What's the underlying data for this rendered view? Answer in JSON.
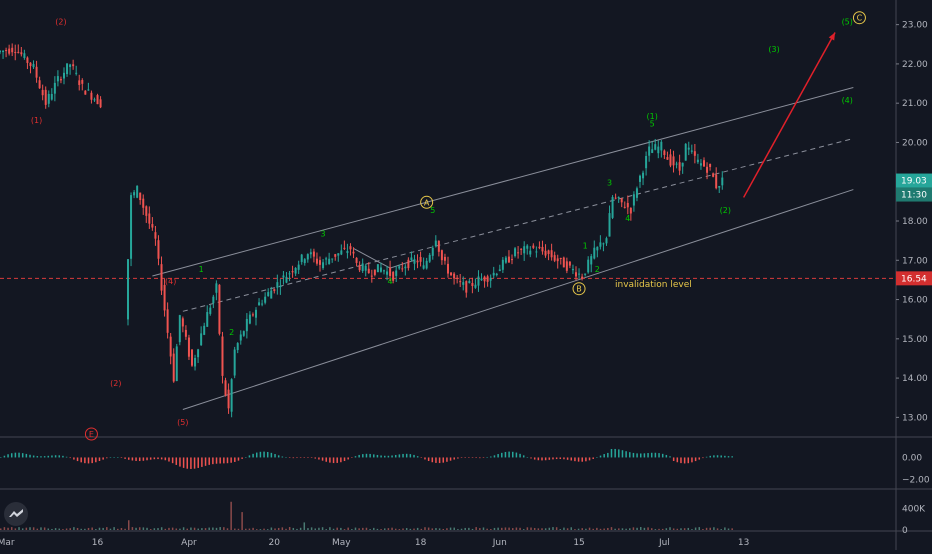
{
  "chart_data": {
    "type": "line",
    "colors": {
      "background": "#131722",
      "up": "#26a69a",
      "down": "#ef5350",
      "channel": "#8a8e9a",
      "wave_green": "#00c800",
      "wave_red": "#e03030",
      "wave_yellow": "#e8c84a",
      "projection": "#e0202a"
    },
    "price_axis": {
      "ylim": [
        12.5,
        23.5
      ],
      "ticks": [
        "23.00",
        "22.00",
        "21.00",
        "20.00",
        "19.00",
        "18.00",
        "17.00",
        "16.00",
        "15.00",
        "14.00",
        "13.00"
      ]
    },
    "current_price_label": "19.03",
    "countdown_label": "11:30",
    "invalidation_price_label": "16.54",
    "invalidation_level": 16.54,
    "invalidation_text": "invalidation level",
    "time_axis": {
      "labels": [
        "Mar",
        "16",
        "Apr",
        "20",
        "May",
        "18",
        "Jun",
        "15",
        "Jul",
        "13"
      ]
    },
    "price_series": [
      {
        "t": 0,
        "v": 22.3
      },
      {
        "t": 3,
        "v": 22.4
      },
      {
        "t": 6,
        "v": 21.9
      },
      {
        "t": 8,
        "v": 21.0
      },
      {
        "t": 10,
        "v": 21.6
      },
      {
        "t": 12,
        "v": 22.0
      },
      {
        "t": 14,
        "v": 21.4
      },
      {
        "t": 17,
        "v": 21.0
      },
      {
        "t": 21,
        "v": 15.5
      },
      {
        "t": 22,
        "v": 18.6
      },
      {
        "t": 23,
        "v": 18.8
      },
      {
        "t": 26,
        "v": 17.5
      },
      {
        "t": 29,
        "v": 14.0
      },
      {
        "t": 30,
        "v": 15.6
      },
      {
        "t": 32,
        "v": 14.3
      },
      {
        "t": 34,
        "v": 15.4
      },
      {
        "t": 36,
        "v": 16.3
      },
      {
        "t": 37,
        "v": 14.0
      },
      {
        "t": 38,
        "v": 13.2
      },
      {
        "t": 39,
        "v": 14.7
      },
      {
        "t": 41,
        "v": 15.4
      },
      {
        "t": 43,
        "v": 15.9
      },
      {
        "t": 46,
        "v": 16.4
      },
      {
        "t": 48,
        "v": 16.7
      },
      {
        "t": 51,
        "v": 17.2
      },
      {
        "t": 53,
        "v": 16.9
      },
      {
        "t": 55,
        "v": 17.1
      },
      {
        "t": 58,
        "v": 17.3
      },
      {
        "t": 59,
        "v": 16.9
      },
      {
        "t": 61,
        "v": 16.7
      },
      {
        "t": 63,
        "v": 16.8
      },
      {
        "t": 65,
        "v": 16.6
      },
      {
        "t": 67,
        "v": 16.9
      },
      {
        "t": 69,
        "v": 17.0
      },
      {
        "t": 70,
        "v": 16.8
      },
      {
        "t": 72,
        "v": 17.6
      },
      {
        "t": 73,
        "v": 17.0
      },
      {
        "t": 75,
        "v": 16.5
      },
      {
        "t": 77,
        "v": 16.3
      },
      {
        "t": 79,
        "v": 16.5
      },
      {
        "t": 81,
        "v": 16.6
      },
      {
        "t": 83,
        "v": 16.9
      },
      {
        "t": 85,
        "v": 17.2
      },
      {
        "t": 88,
        "v": 17.3
      },
      {
        "t": 90,
        "v": 17.2
      },
      {
        "t": 92,
        "v": 17.0
      },
      {
        "t": 94,
        "v": 16.8
      },
      {
        "t": 96,
        "v": 16.6
      },
      {
        "t": 98,
        "v": 17.2
      },
      {
        "t": 100,
        "v": 17.6
      },
      {
        "t": 101,
        "v": 18.6
      },
      {
        "t": 102,
        "v": 18.5
      },
      {
        "t": 104,
        "v": 18.3
      },
      {
        "t": 105,
        "v": 18.9
      },
      {
        "t": 107,
        "v": 19.8
      },
      {
        "t": 109,
        "v": 19.9
      },
      {
        "t": 110,
        "v": 19.6
      },
      {
        "t": 112,
        "v": 19.3
      },
      {
        "t": 113,
        "v": 19.9
      },
      {
        "t": 115,
        "v": 19.5
      },
      {
        "t": 117,
        "v": 19.3
      },
      {
        "t": 118,
        "v": 18.9
      },
      {
        "t": 119,
        "v": 19.03
      }
    ],
    "gap_after_t": 17,
    "channel": {
      "upper": [
        {
          "t": 25,
          "v": 16.6
        },
        {
          "t": 140,
          "v": 21.4
        }
      ],
      "middle": [
        {
          "t": 30,
          "v": 15.7
        },
        {
          "t": 140,
          "v": 20.1
        }
      ],
      "lower": [
        {
          "t": 30,
          "v": 13.2
        },
        {
          "t": 140,
          "v": 18.8
        }
      ]
    },
    "projection_arrow": [
      {
        "t": 122,
        "v": 18.6
      },
      {
        "t": 137,
        "v": 22.8
      }
    ],
    "wave_labels": [
      {
        "text": "(2)",
        "t": 10,
        "v": 23.0,
        "color": "red"
      },
      {
        "text": "(1)",
        "t": 6,
        "v": 20.5,
        "color": "red"
      },
      {
        "text": "(2)",
        "t": 19,
        "v": 13.8,
        "color": "red"
      },
      {
        "text": "(4)",
        "t": 28,
        "v": 16.4,
        "color": "red"
      },
      {
        "text": "(5)",
        "t": 30,
        "v": 12.8,
        "color": "red"
      },
      {
        "text": "E",
        "t": 15,
        "v": 12.5,
        "color": "red",
        "circled": true
      },
      {
        "text": "1",
        "t": 33,
        "v": 16.7,
        "color": "green"
      },
      {
        "text": "2",
        "t": 38,
        "v": 15.1,
        "color": "green"
      },
      {
        "text": "3",
        "t": 53,
        "v": 17.6,
        "color": "green"
      },
      {
        "text": "4",
        "t": 64,
        "v": 16.4,
        "color": "green"
      },
      {
        "text": "A",
        "t": 70,
        "v": 18.4,
        "color": "yellow",
        "circled": true
      },
      {
        "text": "5",
        "t": 71,
        "v": 18.2,
        "color": "green"
      },
      {
        "text": "B",
        "t": 95,
        "v": 16.2,
        "color": "yellow",
        "circled": true
      },
      {
        "text": "1",
        "t": 96,
        "v": 17.3,
        "color": "green"
      },
      {
        "text": "2",
        "t": 98,
        "v": 16.7,
        "color": "green"
      },
      {
        "text": "3",
        "t": 100,
        "v": 18.9,
        "color": "green"
      },
      {
        "text": "4",
        "t": 103,
        "v": 18.0,
        "color": "green"
      },
      {
        "text": "(1)",
        "t": 107,
        "v": 20.6,
        "color": "green"
      },
      {
        "text": "5",
        "t": 107,
        "v": 20.4,
        "color": "green"
      },
      {
        "text": "(2)",
        "t": 119,
        "v": 18.2,
        "color": "green"
      },
      {
        "text": "(3)",
        "t": 127,
        "v": 22.3,
        "color": "green"
      },
      {
        "text": "(4)",
        "t": 139,
        "v": 21.0,
        "color": "green"
      },
      {
        "text": "(5)",
        "t": 139,
        "v": 23.0,
        "color": "green"
      },
      {
        "text": "C",
        "t": 141,
        "v": 23.1,
        "color": "yellow",
        "circled": true
      }
    ],
    "oscillator": {
      "ticks": [
        "0.00",
        "−2.00"
      ],
      "ylim": [
        -2.8,
        1.6
      ]
    },
    "volume": {
      "ticks": [
        "400K",
        "0"
      ],
      "ylim": [
        0,
        700000
      ]
    }
  }
}
